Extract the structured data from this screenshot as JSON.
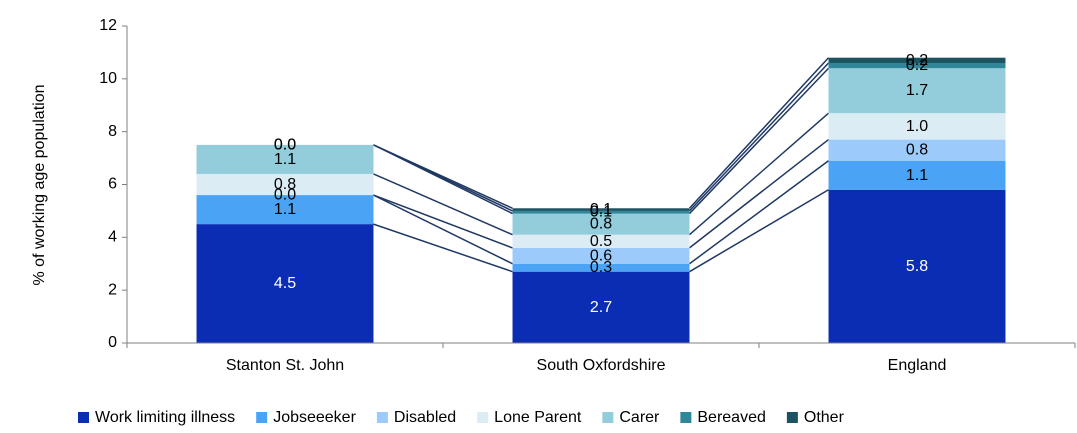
{
  "chart_data": {
    "type": "bar",
    "stacked": true,
    "categories": [
      "Stanton St. John",
      "South Oxfordshire",
      "England"
    ],
    "ylabel": "% of working age population",
    "ylim": [
      0,
      12
    ],
    "yticks": [
      0,
      2,
      4,
      6,
      8,
      10,
      12
    ],
    "ytick_labels": [
      "0",
      "2",
      "4",
      "6",
      "8",
      "10",
      "12"
    ],
    "grid": false,
    "legend_position": "bottom",
    "series_lines": true,
    "series": [
      {
        "name": "Work limiting illness",
        "color": "#0a2db3",
        "label_color": "#ffffff",
        "values": [
          4.5,
          2.7,
          5.8
        ],
        "labels": [
          "4.5",
          "2.7",
          "5.8"
        ]
      },
      {
        "name": "Jobseeeker",
        "color": "#4ba3f5",
        "label_color": "#000000",
        "values": [
          1.1,
          0.3,
          1.1
        ],
        "labels": [
          "1.1",
          "0.3",
          "1.1"
        ]
      },
      {
        "name": "Disabled",
        "color": "#9ccbfb",
        "label_color": "#000000",
        "values": [
          0.0,
          0.6,
          0.8
        ],
        "labels": [
          "0.0",
          "0.6",
          "0.8"
        ]
      },
      {
        "name": "Lone Parent",
        "color": "#dcecf4",
        "label_color": "#000000",
        "values": [
          0.8,
          0.5,
          1.0
        ],
        "labels": [
          "0.8",
          "0.5",
          "1.0"
        ]
      },
      {
        "name": "Carer",
        "color": "#93cddc",
        "label_color": "#000000",
        "values": [
          1.1,
          0.8,
          1.7
        ],
        "labels": [
          "1.1",
          "0.8",
          "1.7"
        ]
      },
      {
        "name": "Bereaved",
        "color": "#2f8799",
        "label_color": "#000000",
        "values": [
          0.0,
          0.1,
          0.2
        ],
        "labels": [
          "0.0",
          "0.1",
          "0.2"
        ]
      },
      {
        "name": "Other",
        "color": "#1b5361",
        "label_color": "#000000",
        "values": [
          0.0,
          0.1,
          0.2
        ],
        "labels": [
          "0.0",
          "0.1",
          "0.2"
        ]
      }
    ]
  }
}
